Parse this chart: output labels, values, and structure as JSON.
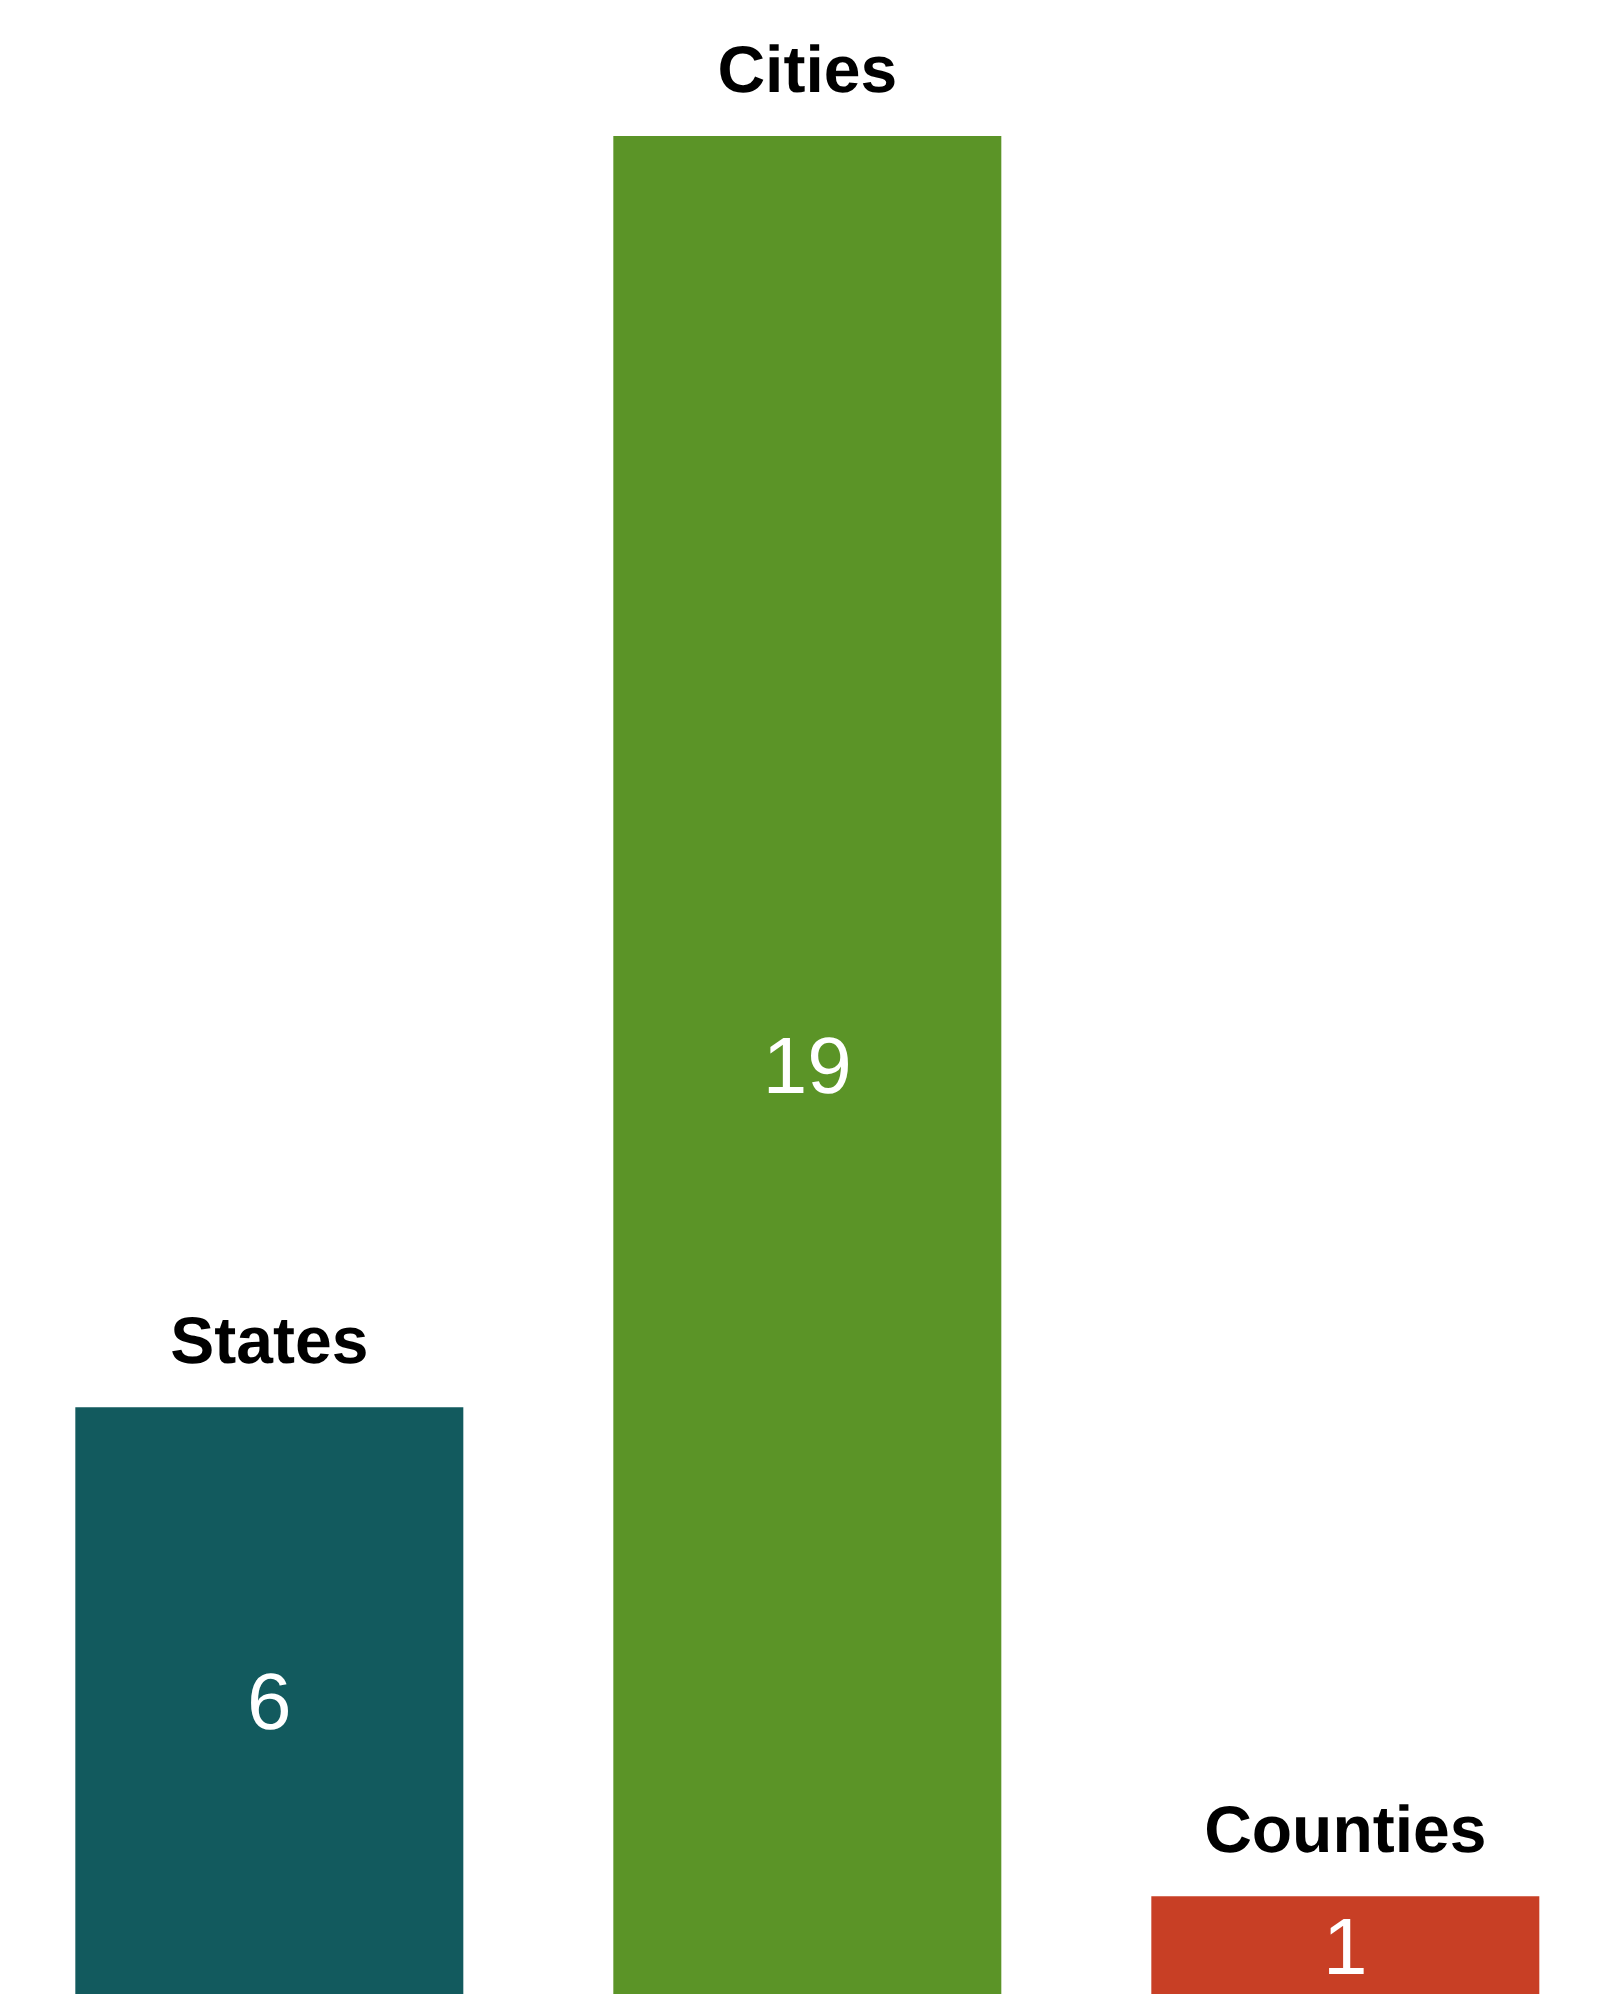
{
  "chart_data": {
    "type": "bar",
    "categories": [
      "States",
      "Cities",
      "Counties"
    ],
    "values": [
      6,
      19,
      1
    ],
    "colors": [
      "#125a5e",
      "#5b9427",
      "#c83f25"
    ],
    "data_labels": true,
    "grid": false,
    "legend": false
  }
}
